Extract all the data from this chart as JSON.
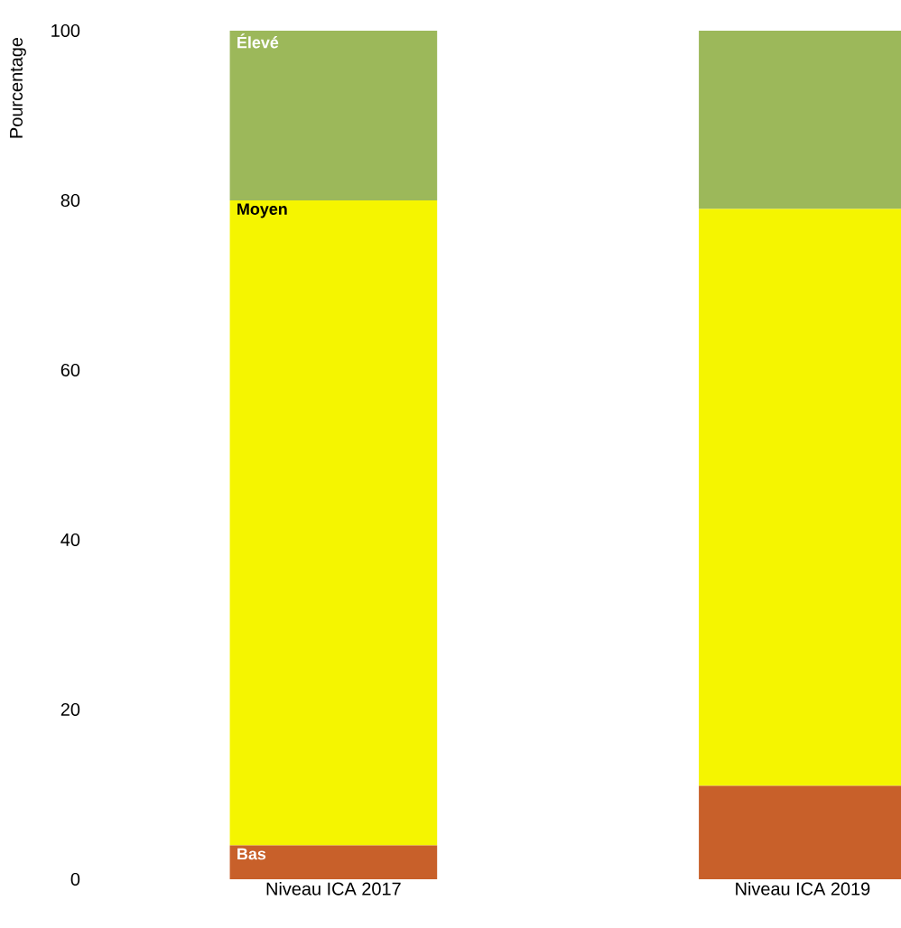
{
  "chart_data": {
    "type": "bar",
    "stacked": true,
    "ylabel": "Pourcentage",
    "categories": [
      "Niveau ICA 2017",
      "Niveau ICA 2019"
    ],
    "series": [
      {
        "name": "Bas",
        "color": "#c8602a",
        "values": [
          4,
          11
        ]
      },
      {
        "name": "Moyen",
        "color": "#f5f500",
        "values": [
          76,
          68
        ]
      },
      {
        "name": "Élevé",
        "color": "#9cb85a",
        "values": [
          20,
          21
        ]
      }
    ],
    "ylim": [
      0,
      100
    ],
    "yticks": [
      0,
      20,
      40,
      60,
      80,
      100
    ],
    "legend": false,
    "grid": false
  }
}
